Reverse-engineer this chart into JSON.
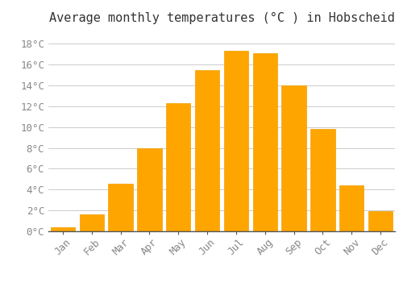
{
  "title": "Average monthly temperatures (°C ) in Hobscheid",
  "months": [
    "Jan",
    "Feb",
    "Mar",
    "Apr",
    "May",
    "Jun",
    "Jul",
    "Aug",
    "Sep",
    "Oct",
    "Nov",
    "Dec"
  ],
  "values": [
    0.4,
    1.6,
    4.6,
    8.0,
    12.3,
    15.5,
    17.3,
    17.1,
    14.0,
    9.8,
    4.4,
    1.9
  ],
  "bar_color": "#FFA500",
  "bar_edge_color": "#F0A000",
  "background_color": "#ffffff",
  "grid_color": "#cccccc",
  "yticks": [
    0,
    2,
    4,
    6,
    8,
    10,
    12,
    14,
    16,
    18
  ],
  "ylim": [
    0,
    19.5
  ],
  "title_fontsize": 11,
  "tick_fontsize": 9,
  "tick_color": "#888888",
  "bar_width": 0.85
}
